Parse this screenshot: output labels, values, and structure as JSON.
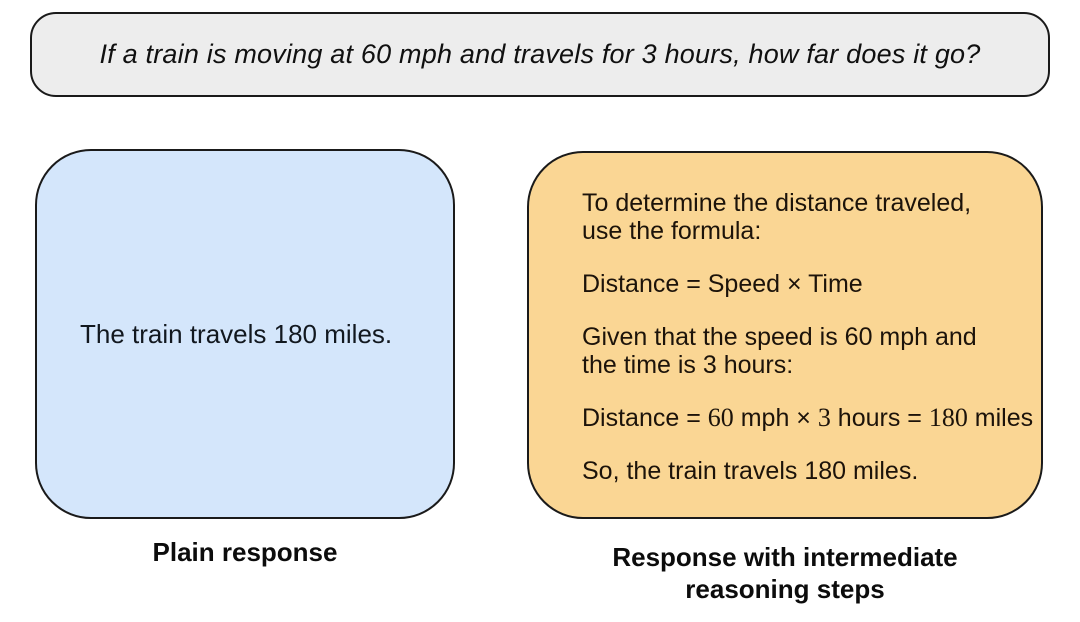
{
  "question": {
    "text": "If a train is moving at 60 mph and travels for 3 hours, how far does it go?"
  },
  "plain_response": {
    "body": "The train travels 180 miles.",
    "caption": "Plain response"
  },
  "reasoning_response": {
    "caption": "Response with intermediate\nreasoning steps",
    "paragraphs": [
      {
        "lines": [
          [
            {
              "t": "To determine the distance traveled,"
            }
          ],
          [
            {
              "t": "use the formula:"
            }
          ]
        ]
      },
      {
        "lines": [
          [
            {
              "t": "Distance = Speed × Time"
            }
          ]
        ]
      },
      {
        "lines": [
          [
            {
              "t": "Given that the speed is 60 mph and"
            }
          ],
          [
            {
              "t": "the time is 3 hours:"
            }
          ]
        ]
      },
      {
        "nowrap": true,
        "lines": [
          [
            {
              "t": "Distance = "
            },
            {
              "t": "60",
              "f": "serif"
            },
            {
              "t": " mph × "
            },
            {
              "t": "3",
              "f": "serif"
            },
            {
              "t": " hours = "
            },
            {
              "t": "180",
              "f": "serif"
            },
            {
              "t": " miles"
            }
          ]
        ]
      },
      {
        "lines": [
          [
            {
              "t": "So, the train travels 180 miles."
            }
          ]
        ]
      }
    ]
  },
  "colors": {
    "gray": "#ededed",
    "blue": "#d4e6fb",
    "orange": "#fad694",
    "border": "#1a1a1a"
  }
}
